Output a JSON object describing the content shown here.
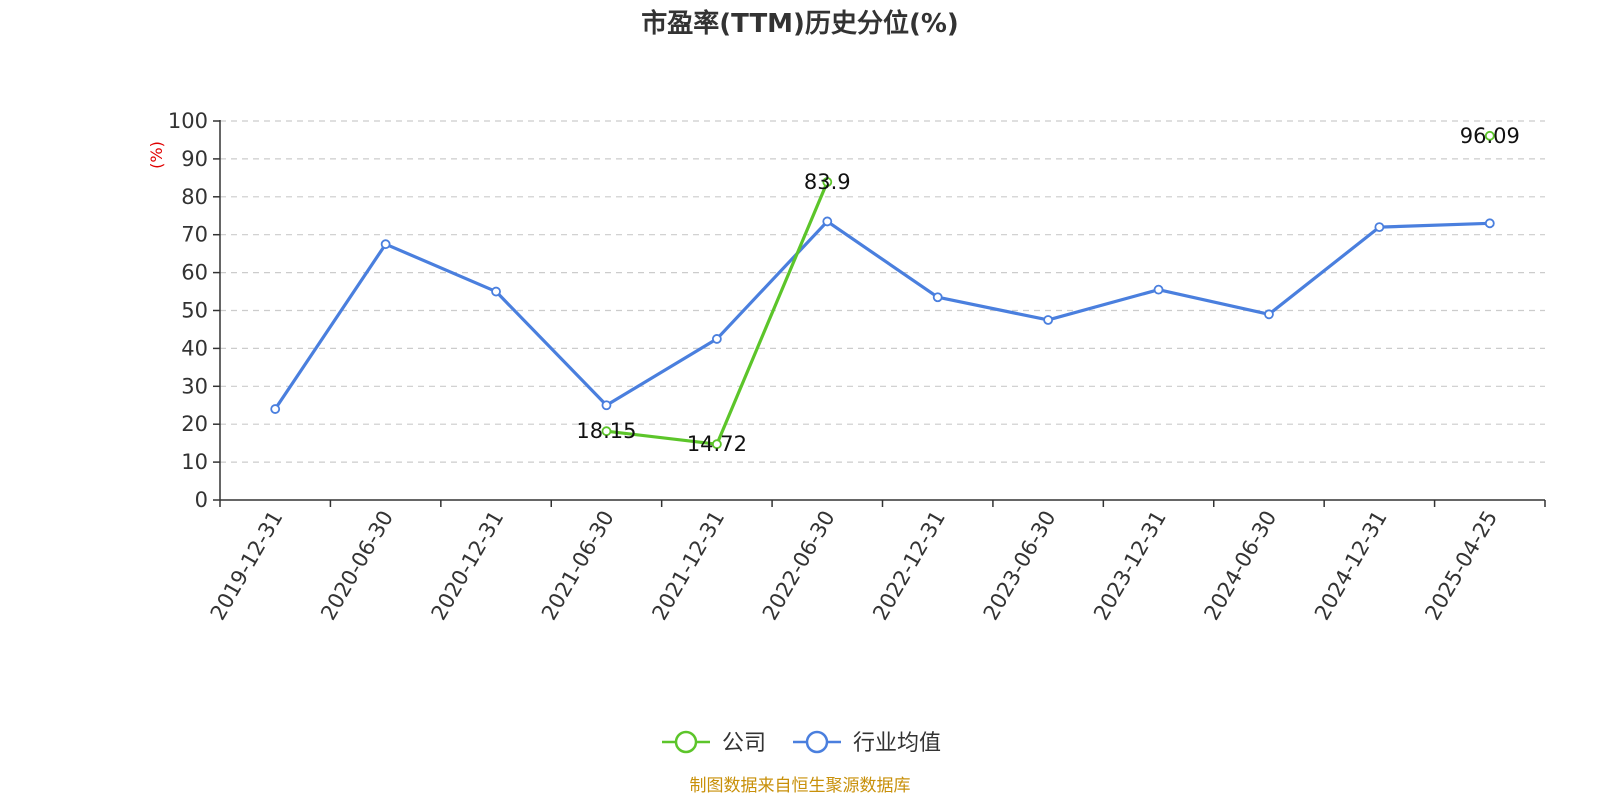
{
  "chart_data": {
    "type": "line",
    "title": "市盈率(TTM)历史分位(%)",
    "ylabel": "(%)",
    "xlabel": "",
    "ylim": [
      0,
      100
    ],
    "yticks": [
      0,
      10,
      20,
      30,
      40,
      50,
      60,
      70,
      80,
      90,
      100
    ],
    "grid": true,
    "legend_position": "bottom-center",
    "categories": [
      "2019-12-31",
      "2020-06-30",
      "2020-12-31",
      "2021-06-30",
      "2021-12-31",
      "2022-06-30",
      "2022-12-31",
      "2023-06-30",
      "2023-12-31",
      "2024-06-30",
      "2024-12-31",
      "2025-04-25"
    ],
    "series": [
      {
        "name": "公司",
        "color": "#5cc52a",
        "values": [
          null,
          null,
          null,
          18.15,
          14.72,
          83.9,
          null,
          null,
          null,
          null,
          null,
          96.09
        ],
        "labels": [
          null,
          null,
          null,
          "18.15",
          "14.72",
          "83.9",
          null,
          null,
          null,
          null,
          null,
          "96.09"
        ]
      },
      {
        "name": "行业均值",
        "color": "#4a7fde",
        "values": [
          24,
          67.5,
          55,
          25,
          42.5,
          73.5,
          53.5,
          47.5,
          55.5,
          49,
          72,
          73
        ],
        "labels": []
      }
    ]
  },
  "source": "制图数据来自恒生聚源数据库"
}
